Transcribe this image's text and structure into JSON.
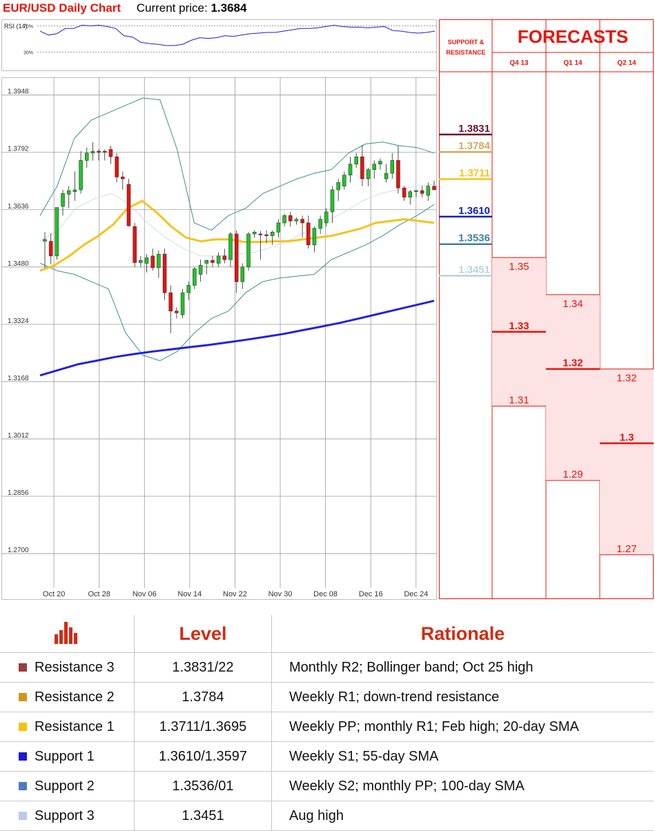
{
  "header": {
    "title": "EUR/USD Daily Chart",
    "price_label": "Current price:",
    "price_value": "1.3684"
  },
  "colors": {
    "up": "#22c22a",
    "down": "#e21414",
    "sma20": "#f5c319",
    "sma100": "#2222dd",
    "bband": "#3a8f8f",
    "red": "#e8140a",
    "fill": "#fde3e3"
  },
  "chart_data": {
    "type": "candlestick",
    "title": "EUR/USD Daily Chart",
    "y_ticks": [
      "1.3948",
      "1.3792",
      "1.3636",
      "1.3480",
      "1.3324",
      "1.3168",
      "1.3012",
      "1.2856",
      "1.2700"
    ],
    "ylim": [
      1.2655,
      1.3985
    ],
    "x_ticks": [
      "Oct 20",
      "Oct 28",
      "Nov 06",
      "Nov 14",
      "Nov 22",
      "Nov 30",
      "Dec 08",
      "Dec 16",
      "Dec 24"
    ],
    "x_tick_index": [
      1,
      6,
      11,
      16,
      21,
      26,
      31,
      36,
      41
    ],
    "ohlc": [
      [
        1.355,
        1.3575,
        1.3478,
        1.3555
      ],
      [
        1.355,
        1.3572,
        1.3488,
        1.351
      ],
      [
        1.351,
        1.3635,
        1.35,
        1.3642
      ],
      [
        1.3645,
        1.369,
        1.362,
        1.368
      ],
      [
        1.3678,
        1.37,
        1.364,
        1.3688
      ],
      [
        1.3685,
        1.374,
        1.366,
        1.369
      ],
      [
        1.369,
        1.3795,
        1.368,
        1.377
      ],
      [
        1.377,
        1.3805,
        1.375,
        1.379
      ],
      [
        1.379,
        1.382,
        1.377,
        1.3795
      ],
      [
        1.3795,
        1.38,
        1.377,
        1.3793
      ],
      [
        1.3795,
        1.38,
        1.377,
        1.3793
      ],
      [
        1.38,
        1.381,
        1.376,
        1.378
      ],
      [
        1.378,
        1.379,
        1.371,
        1.3725
      ],
      [
        1.3725,
        1.374,
        1.369,
        1.372
      ],
      [
        1.3705,
        1.372,
        1.359,
        1.3592
      ],
      [
        1.359,
        1.36,
        1.348,
        1.3492
      ],
      [
        1.3492,
        1.351,
        1.348,
        1.3498
      ],
      [
        1.349,
        1.3515,
        1.3465,
        1.3505
      ],
      [
        1.351,
        1.353,
        1.347,
        1.3478
      ],
      [
        1.3478,
        1.3525,
        1.345,
        1.3515
      ],
      [
        1.3515,
        1.353,
        1.339,
        1.341
      ],
      [
        1.341,
        1.343,
        1.33,
        1.336
      ],
      [
        1.336,
        1.337,
        1.334,
        1.3355
      ],
      [
        1.335,
        1.342,
        1.334,
        1.341
      ],
      [
        1.341,
        1.344,
        1.339,
        1.343
      ],
      [
        1.343,
        1.348,
        1.342,
        1.3475
      ],
      [
        1.346,
        1.35,
        1.344,
        1.3485
      ],
      [
        1.349,
        1.35,
        1.346,
        1.3498
      ],
      [
        1.3498,
        1.351,
        1.348,
        1.3492
      ],
      [
        1.349,
        1.352,
        1.348,
        1.351
      ],
      [
        1.351,
        1.353,
        1.349,
        1.35
      ],
      [
        1.35,
        1.3575,
        1.348,
        1.357
      ],
      [
        1.357,
        1.358,
        1.341,
        1.344
      ],
      [
        1.344,
        1.349,
        1.342,
        1.348
      ],
      [
        1.348,
        1.3575,
        1.347,
        1.357
      ],
      [
        1.357,
        1.358,
        1.356,
        1.3575
      ],
      [
        1.357,
        1.3578,
        1.35,
        1.3568
      ],
      [
        1.3568,
        1.358,
        1.3545,
        1.3565
      ],
      [
        1.3565,
        1.358,
        1.354,
        1.3575
      ],
      [
        1.3575,
        1.361,
        1.356,
        1.36
      ],
      [
        1.36,
        1.3625,
        1.359,
        1.362
      ],
      [
        1.362,
        1.363,
        1.359,
        1.3605
      ],
      [
        1.3605,
        1.3615,
        1.3595,
        1.361
      ],
      [
        1.361,
        1.362,
        1.356,
        1.36
      ],
      [
        1.36,
        1.362,
        1.353,
        1.354
      ],
      [
        1.354,
        1.359,
        1.352,
        1.3585
      ],
      [
        1.3585,
        1.362,
        1.357,
        1.361
      ],
      [
        1.36,
        1.364,
        1.359,
        1.363
      ],
      [
        1.363,
        1.37,
        1.36,
        1.369
      ],
      [
        1.369,
        1.372,
        1.366,
        1.371
      ],
      [
        1.37,
        1.374,
        1.369,
        1.373
      ],
      [
        1.373,
        1.378,
        1.371,
        1.376
      ],
      [
        1.376,
        1.379,
        1.375,
        1.378
      ],
      [
        1.378,
        1.3812,
        1.37,
        1.372
      ],
      [
        1.372,
        1.375,
        1.37,
        1.3745
      ],
      [
        1.3745,
        1.377,
        1.372,
        1.376
      ],
      [
        1.376,
        1.3775,
        1.3745,
        1.3768
      ],
      [
        1.372,
        1.376,
        1.371,
        1.3735
      ],
      [
        1.3735,
        1.379,
        1.372,
        1.377
      ],
      [
        1.377,
        1.381,
        1.368,
        1.3695
      ],
      [
        1.3695,
        1.37,
        1.366,
        1.367
      ],
      [
        1.367,
        1.369,
        1.365,
        1.3685
      ],
      [
        1.3685,
        1.369,
        1.367,
        1.3688
      ],
      [
        1.3688,
        1.37,
        1.367,
        1.368
      ],
      [
        1.3675,
        1.371,
        1.366,
        1.37
      ],
      [
        1.37,
        1.3715,
        1.369,
        1.369
      ]
    ],
    "sma20": [
      1.347,
      1.3485,
      1.351,
      1.354,
      1.3565,
      1.3595,
      1.364,
      1.366,
      1.3628,
      1.359,
      1.356,
      1.355,
      1.3555,
      1.3555,
      1.3548,
      1.3548,
      1.355,
      1.355,
      1.3555,
      1.356,
      1.3565,
      1.3575,
      1.3585,
      1.36,
      1.3605,
      1.361,
      1.3605,
      1.36
    ],
    "sma100": [
      1.3185,
      1.32,
      1.3215,
      1.3225,
      1.3235,
      1.3243,
      1.325,
      1.3256,
      1.3262,
      1.3268,
      1.3275,
      1.3282,
      1.329,
      1.3298,
      1.3308,
      1.3318,
      1.3328,
      1.334,
      1.3352,
      1.3364,
      1.3376,
      1.3388
    ],
    "bb_upper": [
      1.362,
      1.37,
      1.383,
      1.388,
      1.39,
      1.392,
      1.394,
      1.3935,
      1.38,
      1.36,
      1.358,
      1.362,
      1.364,
      1.368,
      1.37,
      1.372,
      1.3735,
      1.3745,
      1.379,
      1.3815,
      1.382,
      1.381,
      1.3805,
      1.379
    ],
    "bb_lower": [
      1.349,
      1.347,
      1.346,
      1.344,
      1.342,
      1.33,
      1.324,
      1.3225,
      1.325,
      1.33,
      1.334,
      1.336,
      1.341,
      1.344,
      1.345,
      1.3455,
      1.346,
      1.35,
      1.352,
      1.354,
      1.3565,
      1.3595,
      1.362,
      1.365
    ],
    "bb_mid": [
      1.355,
      1.358,
      1.364,
      1.3665,
      1.368,
      1.365,
      1.36,
      1.356,
      1.353,
      1.351,
      1.351,
      1.3515,
      1.352,
      1.3535,
      1.3555,
      1.358,
      1.3605,
      1.363,
      1.366,
      1.368,
      1.369,
      1.37,
      1.3705
    ],
    "levels": [
      {
        "label": "1.3831",
        "value": 1.3831,
        "color": "#6a1030"
      },
      {
        "label": "1.3784",
        "value": 1.3784,
        "color": "#d2a860"
      },
      {
        "label": "1.3711",
        "value": 1.3711,
        "color": "#f5c319"
      },
      {
        "label": "1.3610",
        "value": 1.361,
        "color": "#1020c0"
      },
      {
        "label": "1.3536",
        "value": 1.3536,
        "color": "#3f7fa0"
      },
      {
        "label": "1.3451",
        "value": 1.3451,
        "color": "#b5d4dd"
      }
    ],
    "rsi": {
      "label": "RSI (14)",
      "ticks": [
        "70%",
        "30%"
      ],
      "values": [
        62,
        56,
        58,
        66,
        66,
        71,
        70,
        71,
        69,
        66,
        55,
        53,
        45,
        43,
        42,
        40,
        40,
        42,
        48,
        52,
        51,
        52,
        55,
        54,
        56,
        58,
        59,
        60,
        60,
        62,
        64,
        66,
        66,
        67,
        69,
        71,
        69,
        68,
        68,
        67,
        68,
        69,
        63,
        62,
        60,
        59,
        60,
        62
      ]
    }
  },
  "forecasts": {
    "title": "FORECASTS",
    "sr_label_1": "SUPPORT &",
    "sr_label_2": "RESISTANCE",
    "periods": [
      "Q4 13",
      "Q1 14",
      "Q2 14"
    ],
    "ranges": [
      {
        "high": "1.35",
        "mid": "1.33",
        "low": "1.31"
      },
      {
        "high": "1.34",
        "mid": "1.32",
        "low": "1.29"
      },
      {
        "high": "1.32",
        "mid": "1.3",
        "low": "1.27"
      }
    ]
  },
  "table": {
    "h_level": "Level",
    "h_rationale": "Rationale",
    "rows": [
      {
        "name": "Resistance 3",
        "level": "1.3831/22",
        "rationale": "Monthly R2; Bollinger band; Oct 25 high",
        "swatch": "#9a3d3a"
      },
      {
        "name": "Resistance 2",
        "level": "1.3784",
        "rationale": "Weekly R1; down-trend resistance",
        "swatch": "#d09818"
      },
      {
        "name": "Resistance 1",
        "level": "1.3711/1.3695",
        "rationale": "Weekly PP; monthly R1; Feb high; 20-day SMA",
        "swatch": "#f4c20a"
      },
      {
        "name": "Support 1",
        "level": "1.3610/1.3597",
        "rationale": "Weekly S1; 55-day SMA",
        "swatch": "#1c18d6"
      },
      {
        "name": "Support 2",
        "level": "1.3536/01",
        "rationale": "Weekly S2; monthly PP; 100-day SMA",
        "swatch": "#4a7dbf"
      },
      {
        "name": "Support 3",
        "level": "1.3451",
        "rationale": "Aug high",
        "swatch": "#b8cce6"
      }
    ]
  }
}
